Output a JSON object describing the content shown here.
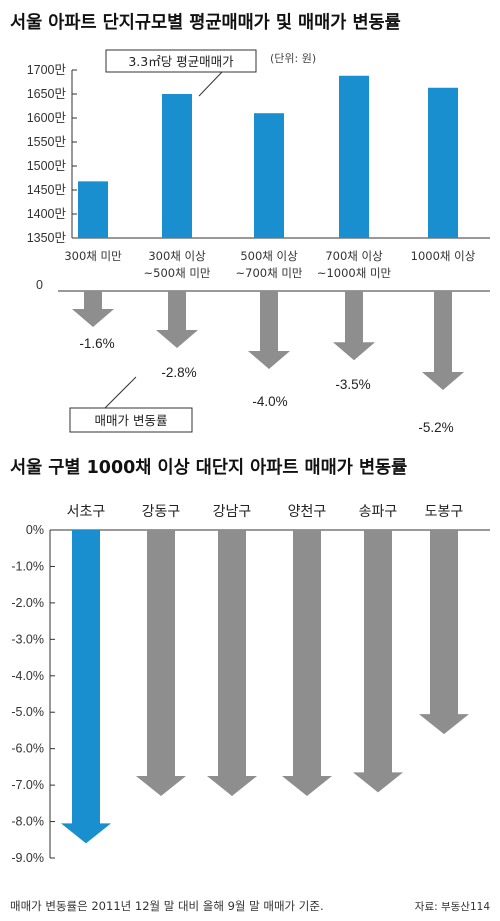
{
  "chart_data": [
    {
      "type": "bar",
      "title": "서울 아파트 단지규모별 평균매매가 및 매매가 변동률",
      "unit_label": "(단위: 원)",
      "series_label": "3.3㎡당 평균매매가",
      "categories": [
        "300채 미만",
        "300채 이상\n~500채 미만",
        "500채 이상\n~700채 미만",
        "700채 이상\n~1000채 미만",
        "1000채 이상"
      ],
      "values": [
        1468,
        1650,
        1610,
        1688,
        1663
      ],
      "ylim": [
        1350,
        1700
      ],
      "yticks": [
        1350,
        1400,
        1450,
        1500,
        1550,
        1600,
        1650,
        1700
      ],
      "ytick_labels": [
        "1350만",
        "1400만",
        "1450만",
        "1500만",
        "1550만",
        "1600만",
        "1650만",
        "1700만"
      ],
      "bar_color": "#1a8fd0"
    },
    {
      "type": "bar",
      "series_label": "매매가 변동률",
      "categories": [
        "300채 미만",
        "300채 이상\n~500채 미만",
        "500채 이상\n~700채 미만",
        "700채 이상\n~1000채 미만",
        "1000채 이상"
      ],
      "values": [
        -1.6,
        -2.8,
        -4.0,
        -3.5,
        -5.2
      ],
      "value_labels": [
        "-1.6%",
        "-2.8%",
        "-4.0%",
        "-3.5%",
        "-5.2%"
      ],
      "zero_label": "0",
      "color": "#8e8e8e"
    },
    {
      "type": "bar",
      "title": "서울 구별 1000채 이상 대단지 아파트 매매가 변동률",
      "categories": [
        "서초구",
        "강동구",
        "강남구",
        "양천구",
        "송파구",
        "도봉구"
      ],
      "values": [
        -8.6,
        -7.3,
        -7.3,
        -7.3,
        -7.2,
        -5.6
      ],
      "ylim": [
        -9.0,
        0
      ],
      "yticks": [
        0,
        -1,
        -2,
        -3,
        -4,
        -5,
        -6,
        -7,
        -8,
        -9
      ],
      "ytick_labels": [
        "0%",
        "-1.0%",
        "-2.0%",
        "-3.0%",
        "-4.0%",
        "-5.0%",
        "-6.0%",
        "-7.0%",
        "-8.0%",
        "-9.0%"
      ],
      "highlight_color": "#1a8fd0",
      "color": "#8e8e8e"
    }
  ],
  "footnote": "매매가 변동률은 2011년 12월 말 대비 올해 9월 말 매매가 기준.",
  "source": "자료: 부동산114"
}
